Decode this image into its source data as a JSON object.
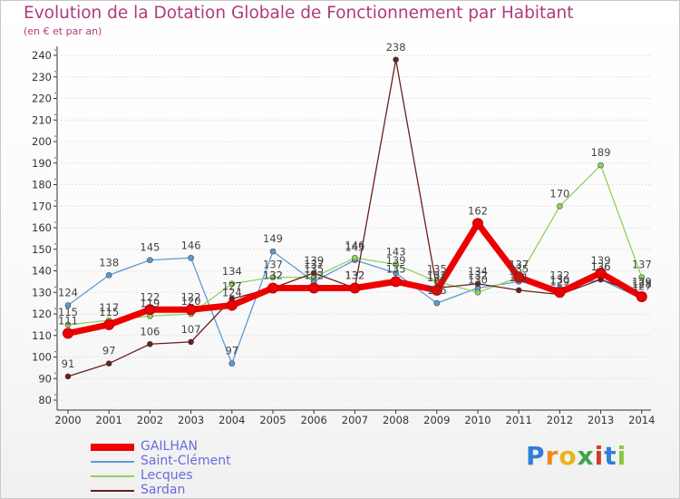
{
  "chart_data": {
    "type": "line",
    "title": "Evolution de la Dotation Globale de Fonctionnement par Habitant",
    "subtitle": "(en € et par an)",
    "xlabel": "",
    "ylabel": "",
    "ylim": [
      80,
      240
    ],
    "yticks": [
      80,
      90,
      100,
      110,
      120,
      130,
      140,
      150,
      160,
      170,
      180,
      190,
      200,
      210,
      220,
      230,
      240
    ],
    "categories": [
      "2000",
      "2001",
      "2002",
      "2003",
      "2004",
      "2005",
      "2006",
      "2007",
      "2008",
      "2009",
      "2010",
      "2011",
      "2012",
      "2013",
      "2014"
    ],
    "series": [
      {
        "name": "Saint-Clément",
        "color": "#5b9bd5",
        "values": [
          124,
          138,
          145,
          146,
          97,
          149,
          135,
          145,
          139,
          125,
          132,
          135,
          132,
          136,
          127
        ]
      },
      {
        "name": "Lecques",
        "color": "#8fd35a",
        "values": [
          115,
          117,
          119,
          120,
          134,
          137,
          137,
          146,
          143,
          135,
          130,
          137,
          170,
          189,
          137
        ]
      },
      {
        "name": "Sardan",
        "color": "#6b1e1e",
        "values": [
          91,
          97,
          106,
          107,
          127,
          132,
          139,
          132,
          238,
          132,
          134,
          131,
          129,
          136,
          129
        ]
      },
      {
        "name": "GAILHAN",
        "color": "#ee0000",
        "values": [
          111,
          115,
          122,
          122,
          124,
          132,
          132,
          132,
          135,
          131,
          162,
          137,
          130,
          139,
          128
        ]
      }
    ],
    "legend_order": [
      "GAILHAN",
      "Saint-Clément",
      "Lecques",
      "Sardan"
    ],
    "legend_position": "bottom-left"
  },
  "brand": {
    "text": "Proxiti",
    "letters": [
      "P",
      "r",
      "o",
      "x",
      "i",
      "t",
      "i"
    ],
    "colors": [
      "#2f7fd8",
      "#f08a1c",
      "#e8b51a",
      "#3fa64a",
      "#d23b2c",
      "#2f7fd8",
      "#8cc63f"
    ]
  }
}
